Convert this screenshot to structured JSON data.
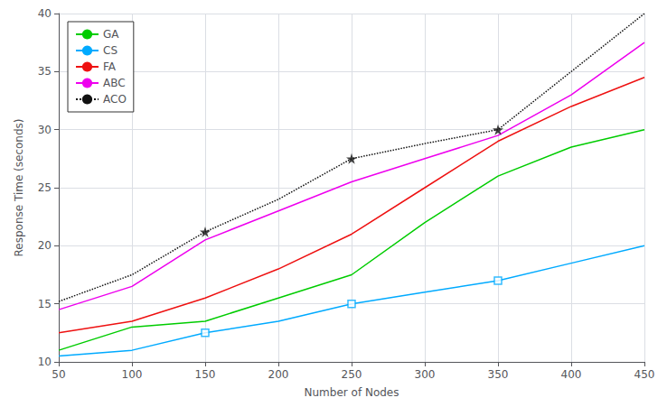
{
  "chart_data": {
    "type": "line",
    "xlabel": "Number of Nodes",
    "ylabel": "Response Time (seconds)",
    "x": [
      50,
      100,
      150,
      200,
      250,
      300,
      350,
      400,
      450
    ],
    "series": [
      {
        "name": "GA",
        "color": "#00cc00",
        "line_style": "solid",
        "values": [
          11.0,
          13.0,
          13.5,
          15.5,
          17.5,
          22.0,
          26.0,
          28.5,
          30.0
        ]
      },
      {
        "name": "CS",
        "color": "#00aaff",
        "line_style": "solid",
        "values": [
          10.5,
          11.0,
          12.5,
          13.5,
          15.0,
          16.0,
          17.0,
          18.5,
          20.0
        ]
      },
      {
        "type": "scatter",
        "color": "#00aaff",
        "marker": "square",
        "x": [
          150,
          250,
          350
        ],
        "values": [
          12.5,
          15.0,
          17.0
        ]
      },
      {
        "name": "FA",
        "color": "#ee1111",
        "line_style": "solid",
        "values": [
          12.5,
          13.5,
          15.5,
          18.0,
          21.0,
          25.0,
          29.0,
          32.0,
          34.5
        ]
      },
      {
        "name": "ABC",
        "color": "#ee00ee",
        "line_style": "solid",
        "values": [
          14.5,
          16.5,
          20.5,
          23.0,
          25.5,
          27.5,
          29.5,
          33.0,
          37.5
        ]
      },
      {
        "name": "ACO",
        "color": "#111111",
        "line_style": "dotted",
        "values": [
          15.2,
          17.5,
          21.2,
          24.0,
          27.5,
          28.8,
          30.0,
          35.0,
          40.0
        ]
      },
      {
        "type": "scatter",
        "color": "#111111",
        "marker": "star",
        "x": [
          150,
          250,
          350
        ],
        "values": [
          21.2,
          27.5,
          30.0
        ]
      }
    ],
    "xlim": [
      50,
      450
    ],
    "ylim": [
      10,
      40
    ],
    "xticks": [
      50,
      100,
      150,
      200,
      250,
      300,
      350,
      400,
      450
    ],
    "yticks": [
      10,
      15,
      20,
      25,
      30,
      35,
      40
    ],
    "grid": true,
    "legend": "upper left"
  }
}
